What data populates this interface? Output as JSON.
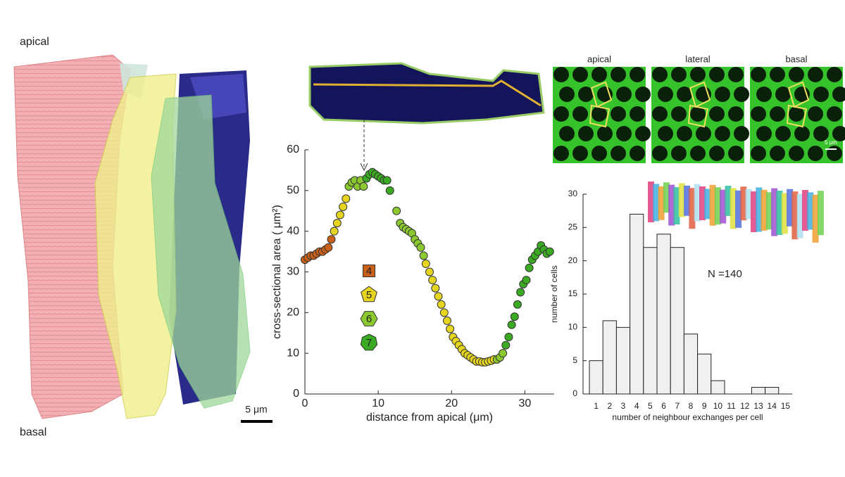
{
  "figure": {
    "top_label": "apical",
    "bottom_label": "basal",
    "scale_bar": "5 μm",
    "micrograph_titles": [
      "apical",
      "lateral",
      "basal"
    ],
    "micrograph_scale": "5 μm"
  },
  "chart_data": [
    {
      "type": "scatter",
      "xlabel": "distance from apical (μm)",
      "ylabel": "cross-sectional area ( μm²)",
      "xlim": [
        0,
        34
      ],
      "xticks": [
        0,
        10,
        20,
        30
      ],
      "ylim": [
        0,
        60
      ],
      "yticks": [
        0,
        10,
        20,
        30,
        40,
        50,
        60
      ],
      "series": [
        {
          "name": "4",
          "color": "#c8601a",
          "x": [
            0,
            0.4,
            0.8,
            1.2,
            1.6,
            2,
            2.4,
            2.8,
            3.2,
            3.6
          ],
          "values": [
            33,
            33.5,
            34,
            34,
            34.5,
            35,
            35,
            35.5,
            36,
            38
          ]
        },
        {
          "name": "5",
          "color": "#e6d51f",
          "x": [
            4,
            4.4,
            4.8,
            5.2,
            5.6,
            16.5,
            17,
            17.4,
            17.8,
            18.2,
            18.6,
            19,
            19.4,
            19.8,
            20.2,
            20.6,
            21,
            21.4,
            21.8,
            22.2,
            22.6,
            23,
            23.4,
            23.8,
            24.2,
            24.6,
            25,
            25.4,
            25.8
          ],
          "values": [
            40,
            42,
            44,
            46,
            48,
            32,
            30,
            28,
            26,
            24,
            22,
            20,
            18,
            16,
            14,
            13,
            12,
            11,
            10,
            9.5,
            9,
            8.5,
            8,
            8,
            7.8,
            7.8,
            8,
            8.2,
            8.5
          ]
        },
        {
          "name": "6",
          "color": "#8cc830",
          "x": [
            6,
            6.4,
            6.8,
            7.2,
            7.6,
            8,
            12.5,
            13,
            13.4,
            13.8,
            14.2,
            14.6,
            15,
            15.4,
            15.8,
            16.2,
            26.2,
            26.6,
            27
          ],
          "values": [
            51,
            52,
            52.5,
            51,
            52.5,
            51,
            45,
            42,
            41,
            40.5,
            40,
            39.5,
            38,
            37,
            36,
            34,
            8.5,
            9,
            10
          ]
        },
        {
          "name": "7",
          "color": "#3aaa22",
          "x": [
            8.4,
            8.8,
            9.2,
            9.6,
            10,
            10.4,
            10.8,
            11.2,
            11.6,
            27.4,
            27.8,
            28.2,
            28.6,
            29,
            29.4,
            29.8,
            30.2,
            30.6,
            31,
            31.4,
            31.8,
            32.2,
            32.6,
            33,
            33.4
          ],
          "values": [
            53,
            54,
            54.5,
            54,
            53.5,
            53,
            52.5,
            52.5,
            50,
            12,
            14,
            17,
            19,
            22,
            25,
            27,
            28,
            31,
            33,
            34,
            35,
            36.5,
            35.5,
            34.5,
            35
          ]
        }
      ]
    },
    {
      "type": "bar",
      "xlabel": "number of neighbour exchanges per cell",
      "ylabel": "number of cells",
      "annotation": "N =140",
      "color": "#f0f0f0",
      "categories": [
        1,
        2,
        3,
        4,
        5,
        6,
        7,
        8,
        9,
        10,
        11,
        12,
        13,
        14,
        15
      ],
      "values": [
        5,
        11,
        10,
        27,
        22,
        24,
        22,
        9,
        6,
        2,
        0,
        0,
        1,
        1,
        0
      ],
      "ylim": [
        0,
        30
      ],
      "yticks": [
        0,
        5,
        10,
        15,
        20,
        25,
        30
      ]
    }
  ]
}
